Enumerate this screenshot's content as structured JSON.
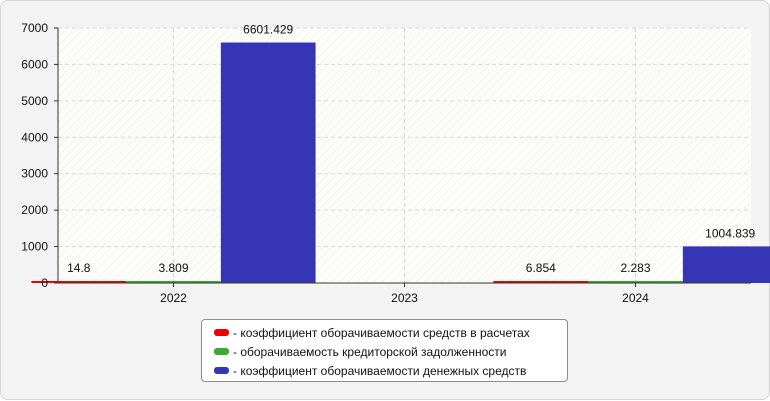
{
  "chart_data": {
    "type": "bar",
    "categories": [
      "2022",
      "2023",
      "2024"
    ],
    "series": [
      {
        "name": "- коэффициент оборачиваемости средств в расчетах",
        "color": "#ee0000",
        "values": [
          14.8,
          null,
          6.854
        ],
        "labels": [
          "14.8",
          "",
          "6.854"
        ]
      },
      {
        "name": "- оборачиваемость кредиторской задолженности",
        "color": "#3aaa35",
        "values": [
          3.809,
          null,
          2.283
        ],
        "labels": [
          "3.809",
          "",
          "2.283"
        ]
      },
      {
        "name": "- коэффициент оборачиваемости денежных средств",
        "color": "#3535b5",
        "values": [
          6601.429,
          null,
          1004.839
        ],
        "labels": [
          "6601.429",
          "",
          "1004.839"
        ]
      }
    ],
    "yticks": [
      "0",
      "1000",
      "2000",
      "3000",
      "4000",
      "5000",
      "6000",
      "7000"
    ],
    "ylim": [
      0,
      7000
    ],
    "grid": true,
    "legend_position": "bottom"
  }
}
